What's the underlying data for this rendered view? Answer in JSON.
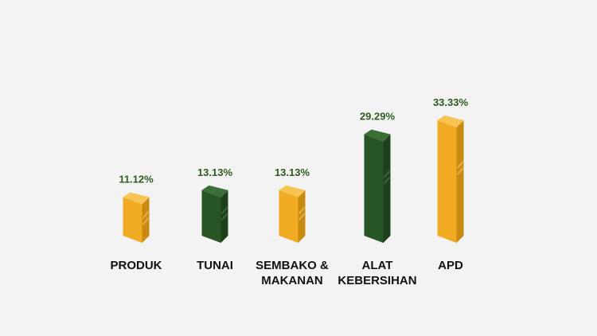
{
  "chart_data": {
    "type": "bar",
    "categories": [
      "PRODUK",
      "TUNAI",
      "SEMBAKO &\nMAKANAN",
      "ALAT\nKEBERSIHAN",
      "APD"
    ],
    "values": [
      11.12,
      13.13,
      13.13,
      29.29,
      33.33
    ],
    "value_labels": [
      "11.12%",
      "13.13%",
      "13.13%",
      "29.29%",
      "33.33%"
    ],
    "ylim": [
      0,
      35
    ],
    "grid": false,
    "colors": {
      "background": "#f3f3f3",
      "label_text": "#2e5a1f",
      "category_text": "#111111",
      "bars": [
        "yellow",
        "green",
        "yellow",
        "green",
        "yellow"
      ],
      "yellow": {
        "front": "#f0ab22",
        "side": "#c98a12",
        "top": "#f7c454",
        "shine": "#f9d27a"
      },
      "green": {
        "front": "#285525",
        "side": "#1d3f1b",
        "top": "#3c6f36",
        "shine": "#5b8a54"
      }
    }
  }
}
